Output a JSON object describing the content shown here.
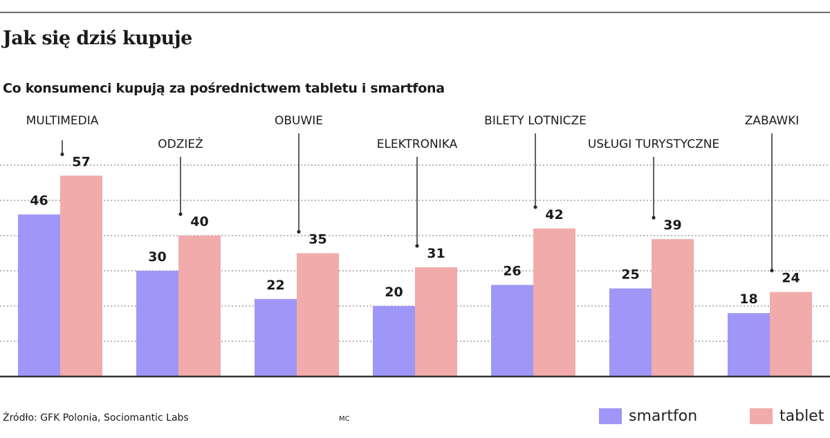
{
  "header": {
    "title": "Jak się dziś kupuje",
    "subtitle": "Co konsumenci kupują za pośrednictwem tabletu i smartfona"
  },
  "chart_data": {
    "type": "bar",
    "title": "Jak się dziś kupuje",
    "subtitle": "Co konsumenci kupują za pośrednictwem tabletu i smartfona",
    "categories": [
      "MULTIMEDIA",
      "ODZIEŻ",
      "OBUWIE",
      "ELEKTRONIKA",
      "BILETY LOTNICZE",
      "USŁUGI TURYSTYCZNE",
      "ZABAWKI"
    ],
    "series": [
      {
        "name": "smartfon",
        "color": "#9e97f7",
        "values": [
          46,
          30,
          22,
          20,
          26,
          25,
          18
        ]
      },
      {
        "name": "tablet",
        "color": "#f2abab",
        "values": [
          57,
          40,
          35,
          31,
          42,
          39,
          24
        ]
      }
    ],
    "ylim": [
      0,
      60
    ],
    "xlabel": "",
    "ylabel": "",
    "grid": true,
    "legend_position": "bottom-right"
  },
  "footer": {
    "source": "Źródło: GFK Polonia, Sociomantic Labs",
    "initials": "MC"
  },
  "legend": {
    "items": [
      {
        "label": "smartfon",
        "color": "#9e97f7"
      },
      {
        "label": "tablet",
        "color": "#f2abab"
      }
    ]
  }
}
